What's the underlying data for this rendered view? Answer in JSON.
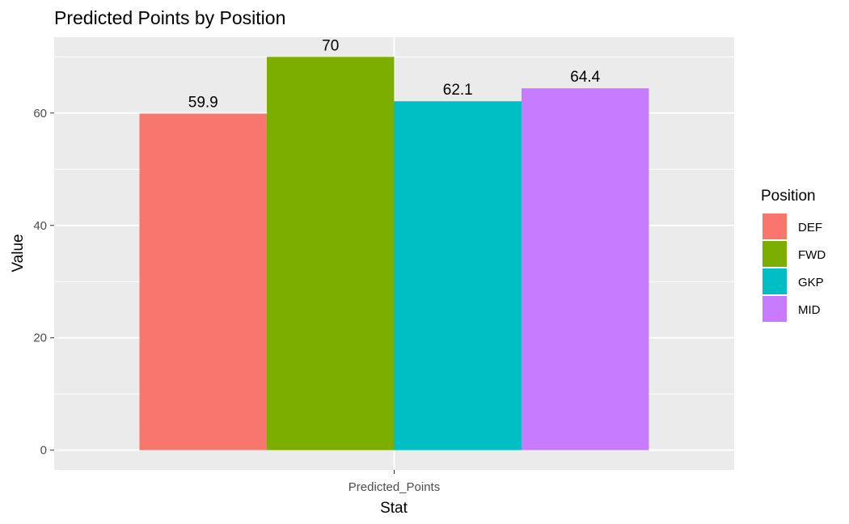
{
  "chart_data": {
    "type": "bar",
    "title": "Predicted Points by Position",
    "xlabel": "Stat",
    "ylabel": "Value",
    "categories": [
      "Predicted_Points"
    ],
    "series": [
      {
        "name": "DEF",
        "values": [
          59.9
        ],
        "label": "59.9",
        "color": "#F8766D"
      },
      {
        "name": "FWD",
        "values": [
          70
        ],
        "label": "70",
        "color": "#7CAE00"
      },
      {
        "name": "GKP",
        "values": [
          62.1
        ],
        "label": "62.1",
        "color": "#00BFC4"
      },
      {
        "name": "MID",
        "values": [
          64.4
        ],
        "label": "64.4",
        "color": "#C77CFF"
      }
    ],
    "ylim": [
      -3.5,
      73.5
    ],
    "yticks": [
      {
        "value": 0,
        "label": "0"
      },
      {
        "value": 20,
        "label": "20"
      },
      {
        "value": 40,
        "label": "40"
      },
      {
        "value": 60,
        "label": "60"
      }
    ],
    "grid": true,
    "legend": {
      "title": "Position",
      "placement": "right"
    },
    "colors": {
      "panel_background": "#EBEBEB",
      "grid_line": "#FFFFFF",
      "tick_mark": "#333333"
    }
  }
}
